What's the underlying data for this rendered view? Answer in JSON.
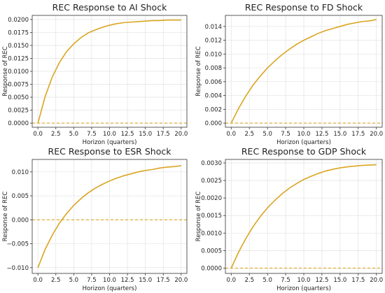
{
  "chart_data": [
    {
      "type": "line",
      "title": "REC Response to AI Shock",
      "xlabel": "Horizon (quarters)",
      "ylabel": "Response of REC",
      "xlim": [
        -0.8,
        20.8
      ],
      "ylim": [
        -0.0008,
        0.0208
      ],
      "xticks": [
        "0.0",
        "2.5",
        "5.0",
        "7.5",
        "10.0",
        "12.5",
        "15.0",
        "17.5",
        "20.0"
      ],
      "yticks": [
        "0.0000",
        "0.0025",
        "0.0050",
        "0.0075",
        "0.0100",
        "0.0125",
        "0.0150",
        "0.0175",
        "0.0200"
      ],
      "grid": true,
      "line_color": "#DAA520",
      "zero_line": true,
      "x": [
        0,
        1,
        2,
        3,
        4,
        5,
        6,
        7,
        8,
        9,
        10,
        11,
        12,
        13,
        14,
        15,
        16,
        17,
        18,
        19,
        20
      ],
      "series": [
        {
          "values": [
            0.0,
            0.0051,
            0.0089,
            0.0117,
            0.0138,
            0.0153,
            0.0165,
            0.0174,
            0.018,
            0.0185,
            0.0189,
            0.0192,
            0.0194,
            0.0195,
            0.0196,
            0.0197,
            0.0198,
            0.0198,
            0.0199,
            0.0199,
            0.0199
          ]
        }
      ]
    },
    {
      "type": "line",
      "title": "REC Response to FD Shock",
      "xlabel": "Horizon (quarters)",
      "ylabel": "Response of REC",
      "xlim": [
        -0.8,
        20.8
      ],
      "ylim": [
        -0.0006,
        0.0156
      ],
      "xticks": [
        "0.0",
        "2.5",
        "5.0",
        "7.5",
        "10.0",
        "12.5",
        "15.0",
        "17.5",
        "20.0"
      ],
      "yticks": [
        "0.000",
        "0.002",
        "0.004",
        "0.006",
        "0.008",
        "0.010",
        "0.012",
        "0.014"
      ],
      "grid": true,
      "line_color": "#DAA520",
      "zero_line": true,
      "x": [
        0,
        1,
        2,
        3,
        4,
        5,
        6,
        7,
        8,
        9,
        10,
        11,
        12,
        13,
        14,
        15,
        16,
        17,
        18,
        19,
        20
      ],
      "series": [
        {
          "values": [
            0.0,
            0.0021,
            0.0039,
            0.0055,
            0.0068,
            0.008,
            0.009,
            0.0099,
            0.0107,
            0.0114,
            0.012,
            0.0125,
            0.013,
            0.0134,
            0.0137,
            0.014,
            0.0143,
            0.0145,
            0.0147,
            0.0148,
            0.015
          ]
        }
      ]
    },
    {
      "type": "line",
      "title": "REC Response to ESR Shock",
      "xlabel": "Horizon (quarters)",
      "ylabel": "Response of REC",
      "xlim": [
        -0.8,
        20.8
      ],
      "ylim": [
        -0.0112,
        0.0126
      ],
      "xticks": [
        "0.0",
        "2.5",
        "5.0",
        "7.5",
        "10.0",
        "12.5",
        "15.0",
        "17.5",
        "20.0"
      ],
      "yticks": [
        "−0.010",
        "−0.005",
        "0.000",
        "0.005",
        "0.010"
      ],
      "grid": true,
      "line_color": "#DAA520",
      "zero_line": true,
      "x": [
        0,
        1,
        2,
        3,
        4,
        5,
        6,
        7,
        8,
        9,
        10,
        11,
        12,
        13,
        14,
        15,
        16,
        17,
        18,
        19,
        20
      ],
      "series": [
        {
          "values": [
            -0.01,
            -0.0062,
            -0.0032,
            -0.0007,
            0.0013,
            0.003,
            0.0044,
            0.0056,
            0.0066,
            0.0074,
            0.0081,
            0.0087,
            0.0092,
            0.0096,
            0.01,
            0.0103,
            0.0105,
            0.0108,
            0.011,
            0.0111,
            0.0113
          ]
        }
      ]
    },
    {
      "type": "line",
      "title": "REC Response to GDP Shock",
      "xlabel": "Horizon (quarters)",
      "ylabel": "Response of REC",
      "xlim": [
        -0.8,
        20.8
      ],
      "ylim": [
        -0.00015,
        0.0031
      ],
      "xticks": [
        "0.0",
        "2.5",
        "5.0",
        "7.5",
        "10.0",
        "12.5",
        "15.0",
        "17.5",
        "20.0"
      ],
      "yticks": [
        "0.0000",
        "0.0005",
        "0.0010",
        "0.0015",
        "0.0020",
        "0.0025",
        "0.0030"
      ],
      "grid": true,
      "line_color": "#DAA520",
      "zero_line": true,
      "x": [
        0,
        1,
        2,
        3,
        4,
        5,
        6,
        7,
        8,
        9,
        10,
        11,
        12,
        13,
        14,
        15,
        16,
        17,
        18,
        19,
        20
      ],
      "series": [
        {
          "values": [
            0.0,
            0.00045,
            0.00084,
            0.00118,
            0.00147,
            0.00172,
            0.00193,
            0.00212,
            0.00228,
            0.00241,
            0.00253,
            0.00262,
            0.0027,
            0.00277,
            0.00282,
            0.00286,
            0.00289,
            0.00291,
            0.00293,
            0.00294,
            0.00295
          ]
        }
      ]
    }
  ]
}
